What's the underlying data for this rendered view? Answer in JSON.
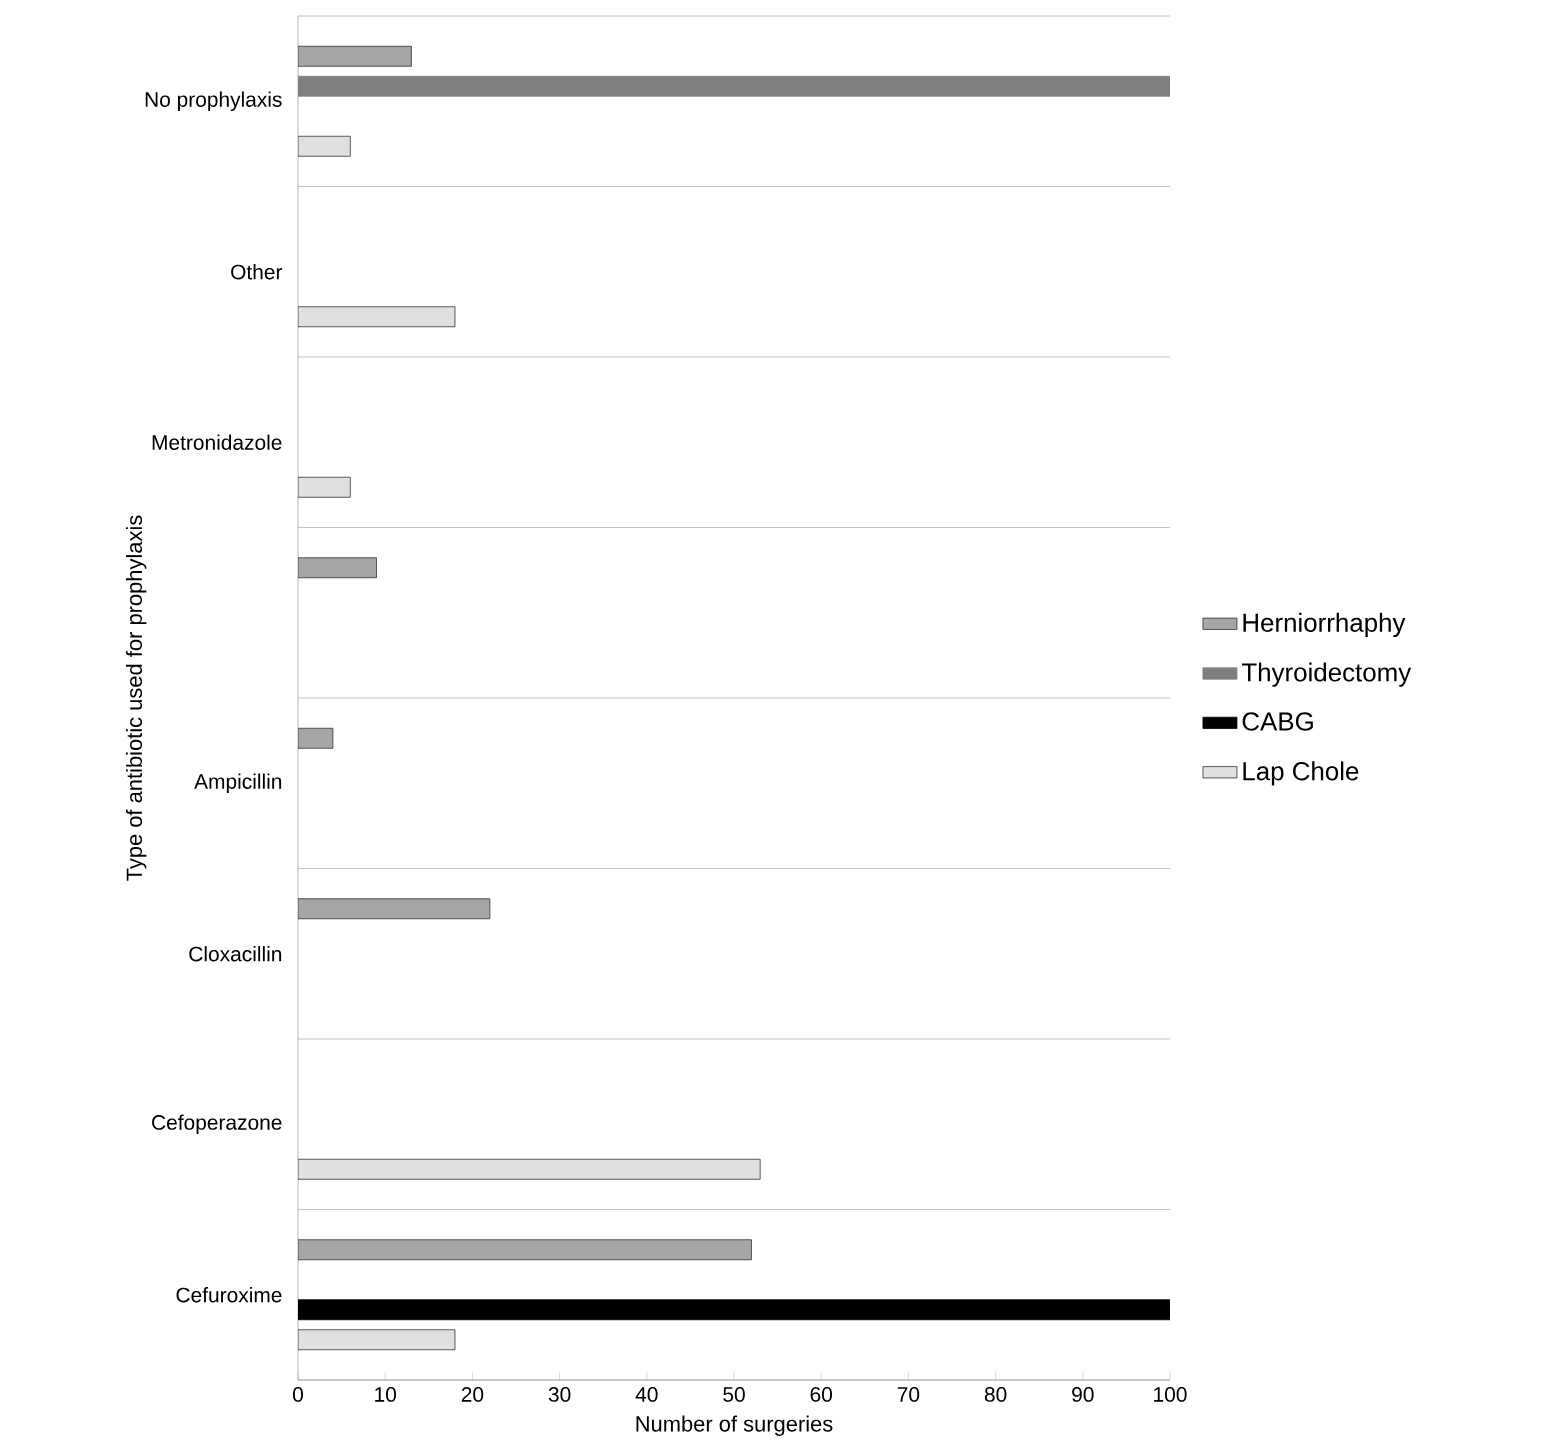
{
  "chart_data": {
    "type": "bar",
    "orientation": "horizontal",
    "xlabel": "Number of surgeries",
    "ylabel": "Type of antibiotic used for prophylaxis",
    "categories": [
      "No prophylaxis",
      "Other",
      "Metronidazole",
      null,
      "Ampicillin",
      "Cloxacillin",
      "Cefoperazone",
      "Cefuroxime"
    ],
    "series": [
      {
        "name": "Herniorrhaphy",
        "color": "#a6a6a6",
        "values": [
          13,
          null,
          null,
          9,
          4,
          22,
          null,
          52
        ]
      },
      {
        "name": "Thyroidectomy",
        "color": "#7f7f7f",
        "values": [
          100,
          null,
          null,
          null,
          null,
          null,
          null,
          null
        ]
      },
      {
        "name": "CABG",
        "color": "#000000",
        "values": [
          null,
          null,
          null,
          null,
          null,
          null,
          null,
          100
        ]
      },
      {
        "name": "Lap Chole",
        "color": "#e0e0e0",
        "values": [
          6,
          18,
          6,
          null,
          null,
          null,
          53,
          18
        ]
      }
    ],
    "xlim": [
      0,
      100
    ],
    "xticks": [
      0,
      10,
      20,
      30,
      40,
      50,
      60,
      70,
      80,
      90,
      100
    ],
    "grid": "y",
    "legend": "right"
  }
}
